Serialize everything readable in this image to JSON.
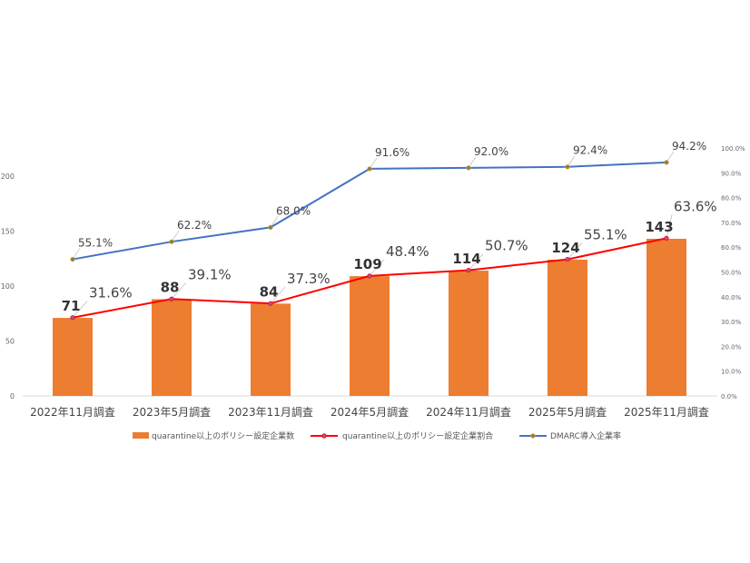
{
  "chart_data": {
    "type": "bar+line",
    "categories": [
      "2022年11月調査",
      "2023年5月調査",
      "2023年11月調査",
      "2024年5月調査",
      "2024年11月調査",
      "2025年5月調査",
      "2025年11月調査"
    ],
    "series": [
      {
        "name": "quarantine以上のポリシー設定企業数",
        "type": "bar",
        "axis": "left",
        "color": "#ED7D31",
        "values": [
          71,
          88,
          84,
          109,
          114,
          124,
          143
        ],
        "labels": [
          "71",
          "88",
          "84",
          "109",
          "114",
          "124",
          "143"
        ]
      },
      {
        "name": "quarantine以上のポリシー設定企業割合",
        "type": "line",
        "axis": "right",
        "color": "#FF0000",
        "values": [
          31.6,
          39.1,
          37.3,
          48.4,
          50.7,
          55.1,
          63.6
        ],
        "labels": [
          "31.6%",
          "39.1%",
          "37.3%",
          "48.4%",
          "50.7%",
          "55.1%",
          "63.6%"
        ]
      },
      {
        "name": "DMARC導入企業率",
        "type": "line",
        "axis": "right",
        "color": "#4472C4",
        "values": [
          55.1,
          62.2,
          68.0,
          91.6,
          92.0,
          92.4,
          94.2
        ],
        "labels": [
          "55.1%",
          "62.2%",
          "68.0%",
          "91.6%",
          "92.0%",
          "92.4%",
          "94.2%"
        ]
      }
    ],
    "y_left": {
      "min": 0,
      "max": 200,
      "ticks": [
        "0",
        "50",
        "100",
        "150",
        "200"
      ]
    },
    "y_right": {
      "min": 0,
      "max": 100,
      "ticks": [
        "0.0%",
        "10.0%",
        "20.0%",
        "30.0%",
        "40.0%",
        "50.0%",
        "60.0%",
        "70.0%",
        "80.0%",
        "90.0%",
        "100.0%"
      ]
    },
    "legend_position": "bottom",
    "grid": false
  }
}
